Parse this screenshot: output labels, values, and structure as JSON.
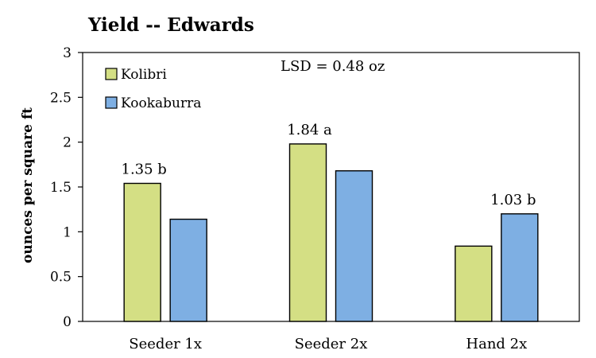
{
  "chart_data": {
    "type": "bar",
    "title": "Yield -- Edwards",
    "ylabel": "ounces per square ft",
    "xlabel": "",
    "ylim": [
      0,
      3
    ],
    "yticks": [
      "0",
      "0.5",
      "1",
      "1.5",
      "2",
      "2.5",
      "3"
    ],
    "grid": false,
    "legend_position": "top-left",
    "categories": [
      "Seeder 1x",
      "Seeder 2x",
      "Hand 2x"
    ],
    "series": [
      {
        "name": "Kolibri",
        "color": "#d4df84",
        "values": [
          1.54,
          1.98,
          0.84
        ]
      },
      {
        "name": "Kookaburra",
        "color": "#7eafe3",
        "values": [
          1.14,
          1.68,
          1.2
        ]
      }
    ],
    "group_labels": [
      "1.35 b",
      "1.84 a",
      "1.03 b"
    ],
    "annotation": "LSD = 0.48 oz"
  }
}
